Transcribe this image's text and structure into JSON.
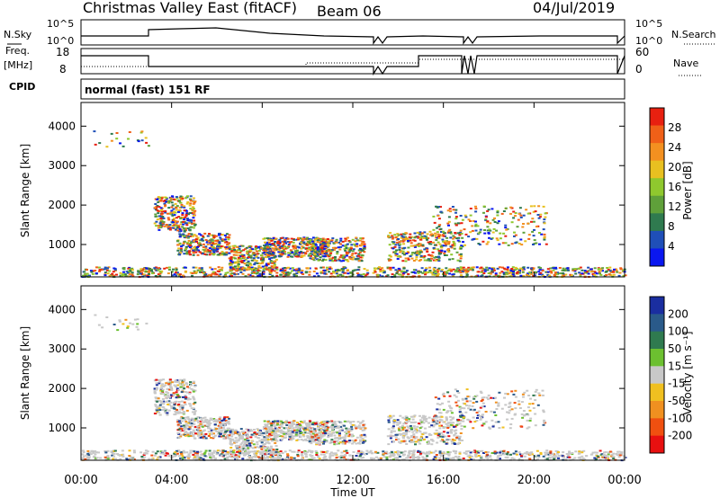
{
  "header": {
    "title": "Christmas Valley East (fitACF)",
    "beam": "Beam 06",
    "date": "04/Jul/2019"
  },
  "top_panels": {
    "nsky_label": "N.Sky",
    "nsky_scale_hi": "10^5",
    "nsky_scale_lo": "10^0",
    "nsearch_label": "N.Search",
    "nsearch_scale_hi": "10^5",
    "nsearch_scale_lo": "10^0",
    "freq_label_1": "Freq.",
    "freq_label_2": "[MHz]",
    "freq_ticks": [
      "18",
      "8"
    ],
    "nave_label": "Nave",
    "nave_ticks": [
      "60",
      "0"
    ],
    "cpid_label": "CPID",
    "cpid_text": "normal (fast) 151 RF"
  },
  "chart_data": [
    {
      "type": "heatmap",
      "name": "power",
      "ylabel": "Slant Range [km]",
      "xlabel": "",
      "y_ticks": [
        "1000",
        "2000",
        "3000",
        "4000"
      ],
      "y_tick_values": [
        1000,
        2000,
        3000,
        4000
      ],
      "ylim": [
        180,
        4600
      ],
      "xlim": [
        0,
        24
      ],
      "colorbar_label": "Power [dB]",
      "colorbar_ticks": [
        "4",
        "8",
        "12",
        "16",
        "20",
        "24",
        "28"
      ],
      "colorbar_colors": [
        "#0a17f0",
        "#1f4fb8",
        "#2f7a4f",
        "#5fa03a",
        "#8fc82e",
        "#e8c020",
        "#f39020",
        "#f06018",
        "#e82010"
      ]
    },
    {
      "type": "heatmap",
      "name": "velocity",
      "ylabel": "Slant Range [km]",
      "xlabel": "Time UT",
      "y_ticks": [
        "1000",
        "2000",
        "3000",
        "4000"
      ],
      "y_tick_values": [
        1000,
        2000,
        3000,
        4000
      ],
      "ylim": [
        180,
        4600
      ],
      "xlim": [
        0,
        24
      ],
      "x_ticks": [
        "00:00",
        "04:00",
        "08:00",
        "12:00",
        "16:00",
        "20:00",
        "00:00"
      ],
      "colorbar_label": "Velocity [m s⁻¹]",
      "colorbar_ticks": [
        "200",
        "100",
        "50",
        "15",
        "-15",
        "-50",
        "-100",
        "-200"
      ],
      "colorbar_colors": [
        "#1a2ea0",
        "#2a5a8a",
        "#2f7a4f",
        "#6cc030",
        "#c8c8c8",
        "#f0c020",
        "#f09020",
        "#f05010",
        "#e81010"
      ]
    }
  ]
}
